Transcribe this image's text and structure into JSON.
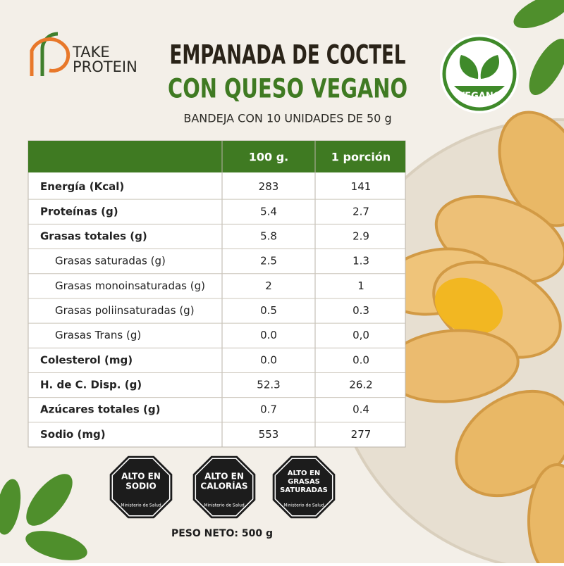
{
  "brand": {
    "lines": [
      "TAKE",
      "PROTEIN"
    ]
  },
  "header": {
    "title_lines": [
      "EMPANADA DE COCTEL",
      "CON QUESO VEGANO"
    ],
    "subtitle": "BANDEJA CON 10 UNIDADES DE 50 g"
  },
  "badge": {
    "label": "VEGANO"
  },
  "table": {
    "columns": [
      "100 g.",
      "1 porción"
    ],
    "rows": [
      {
        "label": "Energía (Kcal)",
        "indent": false,
        "cells": [
          "283",
          "141"
        ]
      },
      {
        "label": "Proteínas (g)",
        "indent": false,
        "cells": [
          "5.4",
          "2.7"
        ]
      },
      {
        "label": "Grasas totales (g)",
        "indent": false,
        "cells": [
          "5.8",
          "2.9"
        ]
      },
      {
        "label": "Grasas saturadas (g)",
        "indent": true,
        "cells": [
          "2.5",
          "1.3"
        ]
      },
      {
        "label": "Grasas monoinsaturadas (g)",
        "indent": true,
        "cells": [
          "2",
          "1"
        ]
      },
      {
        "label": "Grasas poliinsaturadas (g)",
        "indent": true,
        "cells": [
          "0.5",
          "0.3"
        ]
      },
      {
        "label": "Grasas Trans (g)",
        "indent": true,
        "cells": [
          "0.0",
          "0,0"
        ]
      },
      {
        "label": "Colesterol (mg)",
        "indent": false,
        "cells": [
          "0.0",
          "0.0"
        ]
      },
      {
        "label": "H. de C. Disp. (g)",
        "indent": false,
        "cells": [
          "52.3",
          "26.2"
        ]
      },
      {
        "label": "Azúcares totales (g)",
        "indent": false,
        "cells": [
          "0.7",
          "0.4"
        ]
      },
      {
        "label": "Sodio (mg)",
        "indent": false,
        "cells": [
          "553",
          "277"
        ]
      }
    ]
  },
  "warnings": [
    {
      "lines": [
        "ALTO EN",
        "SODIO"
      ],
      "authority": "Ministerio de Salud"
    },
    {
      "lines": [
        "ALTO EN",
        "CALORÍAS"
      ],
      "authority": "Ministerio de Salud"
    },
    {
      "lines": [
        "ALTO EN",
        "GRASAS",
        "SATURADAS"
      ],
      "authority": "Ministerio de Salud"
    }
  ],
  "footer": {
    "net_weight": "PESO NETO: 500 g"
  }
}
